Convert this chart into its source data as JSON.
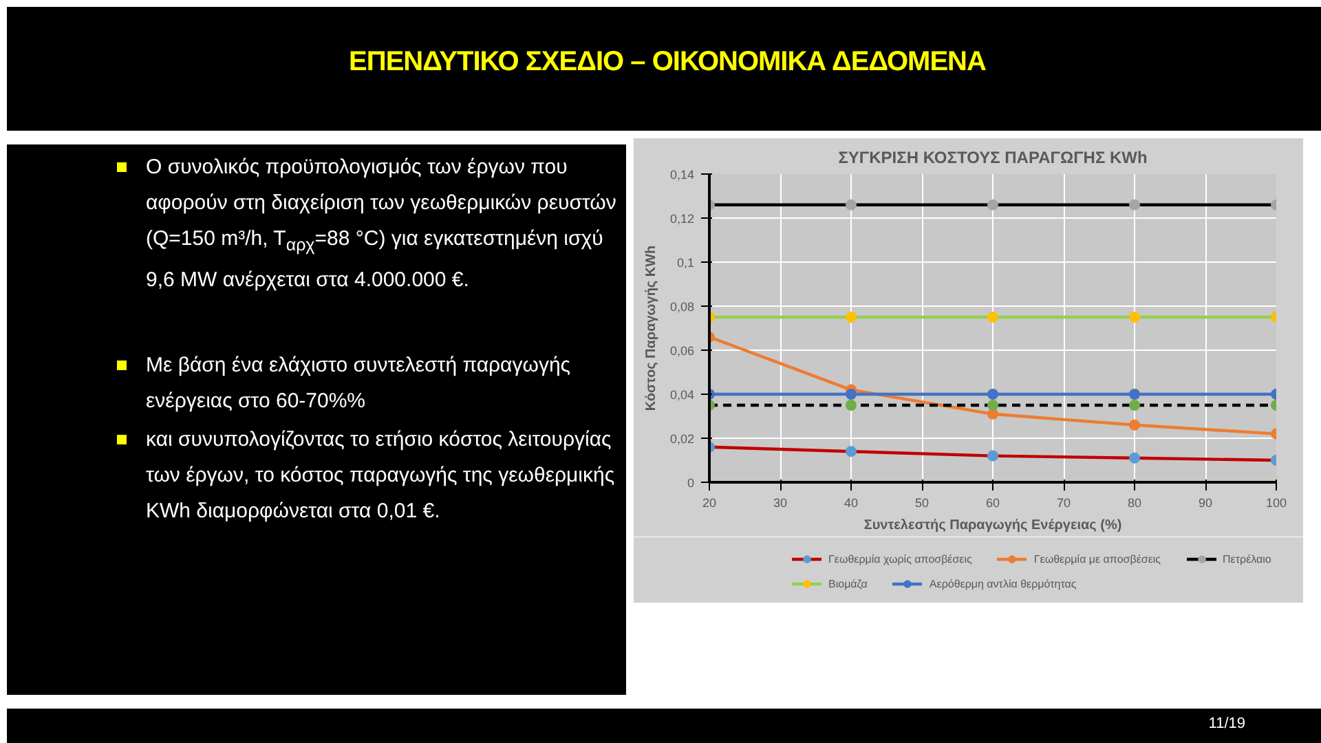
{
  "chart_data": {
    "type": "line",
    "title": "ΣΥΓΚΡΙΣΗ ΚΟΣΤΟΥΣ ΠΑΡΑΓΩΓΗΣ KWh",
    "subtitle": "ΕΠΕΝΔΥΤΙΚΟ ΣΧΕΔΙΟ – ΟΙΚΟΝΟΜΙΚΑ ΔΕΔΟΜΕΝΑ",
    "xlabel": "Συντελεστής Παραγωγής Ενέργειας (%)",
    "ylabel": "Κόστος Παραγωγής KWh",
    "x": [
      20,
      40,
      60,
      80,
      100
    ],
    "series": [
      {
        "name": "Γεωθερμία χωρίς αποσβέσεις",
        "color": "#c00000",
        "colors": [
          "#5b9bd5",
          "#5b9bd5",
          "#5b9bd5",
          "#5b9bd5",
          "#5b9bd5"
        ],
        "values": [
          0.016,
          0.014,
          0.012,
          0.011,
          0.01
        ]
      },
      {
        "name": "Γεωθερμία με αποσβέσεις",
        "color": "#ed7d31",
        "colors": [
          "#ed7d31",
          "#ed7d31",
          "#ed7d31",
          "#ed7d31",
          "#ed7d31"
        ],
        "values": [
          0.066,
          0.042,
          0.031,
          0.026,
          0.022
        ]
      },
      {
        "name": "Πετρέλαιο",
        "color": "#000000",
        "colors": [
          "#a5a5a5",
          "#a5a5a5",
          "#a5a5a5",
          "#a5a5a5",
          "#a5a5a5"
        ],
        "values": [
          0.126,
          0.126,
          0.126,
          0.126,
          0.126
        ]
      },
      {
        "name": "Βιομάζα",
        "color": "#92d050",
        "colors": [
          "#ffc000",
          "#ffc000",
          "#ffc000",
          "#ffc000",
          "#ffc000"
        ],
        "values": [
          0.075,
          0.075,
          0.075,
          0.075,
          0.075
        ]
      },
      {
        "name": "Αερόθερμη αντλία θερμότητας",
        "color": "#4472c4",
        "colors": [
          "#4472c4",
          "#4472c4",
          "#4472c4",
          "#4472c4",
          "#4472c4"
        ],
        "values": [
          0.04,
          0.04,
          0.04,
          0.04,
          0.04
        ]
      },
      {
        "color": "#000000",
        "line_style": "dashed",
        "colors": [
          "#70ad47",
          "#70ad47",
          "#70ad47",
          "#70ad47",
          "#70ad47"
        ],
        "values": [
          0.035,
          0.035,
          0.035,
          0.035,
          0.035
        ]
      }
    ],
    "xlim": [
      20,
      100
    ],
    "xticks": [
      20,
      30,
      40,
      50,
      60,
      70,
      80,
      90,
      100
    ],
    "ylim": [
      0,
      0.14
    ],
    "yticks": [
      0,
      {
        "value": 0.02,
        "label": "0,02"
      },
      {
        "value": 0.04,
        "label": "0,04"
      },
      {
        "value": 0.06,
        "label": "0,06"
      },
      {
        "value": 0.08,
        "label": "0,08"
      },
      {
        "value": 0.1,
        "label": "0,1"
      },
      {
        "value": 0.12,
        "label": "0,12"
      },
      {
        "value": 0.14,
        "label": "0,14"
      }
    ],
    "grid": true,
    "legend": "bottom",
    "marker": "circle",
    "line_style": "solid",
    "annotations": [
      "Ο συνολικός προϋπολογισμός των έργων που αφορούν στη διαχείριση των γεωθερμικών ρευστών (Q=150 m³/h, T$_{αρχ}$=88 °C) για εγκατεστημένη ισχύ 9,6 MW ανέρχεται στα 4.000.000 €.",
      "Με βάση ένα ελάχιστο συντελεστή παραγωγής ενέργειας στο 60-70%%",
      "και συνυπολογίζοντας το ετήσιο κόστος λειτουργίας των έργων, το κόστος παραγωγής της γεωθερμικής KWh διαμορφώνεται στα 0,01 €.",
      "11/19"
    ]
  }
}
